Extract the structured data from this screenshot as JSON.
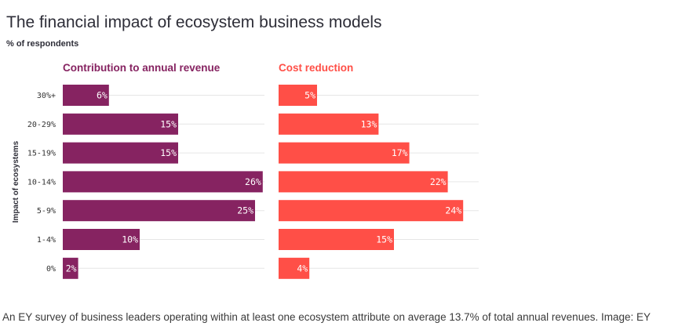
{
  "page": {
    "title": "The financial impact of ecosystem business models",
    "subtitle": "% of respondents",
    "caption": "An EY survey of business leaders operating within at least one ecosystem attribute on average 13.7% of total annual revenues. Image: EY"
  },
  "chart_data": {
    "type": "bar",
    "orientation": "horizontal",
    "ylabel": "Impact of ecosystems",
    "categories": [
      "30%+",
      "20-29%",
      "15-19%",
      "10-14%",
      "5-9%",
      "1-4%",
      "0%"
    ],
    "grid": true,
    "series": [
      {
        "name": "Contribution to annual revenue",
        "color": "#862361",
        "values": [
          6,
          15,
          15,
          26,
          25,
          10,
          2
        ],
        "labels": [
          "6%",
          "15%",
          "15%",
          "26%",
          "25%",
          "10%",
          "2%"
        ]
      },
      {
        "name": "Cost reduction",
        "color": "#ff4f47",
        "values": [
          5,
          13,
          17,
          22,
          24,
          15,
          4
        ],
        "labels": [
          "5%",
          "13%",
          "17%",
          "22%",
          "24%",
          "15%",
          "4%"
        ]
      }
    ]
  }
}
